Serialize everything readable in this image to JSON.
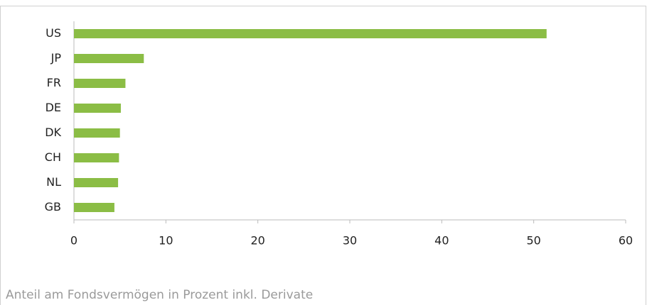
{
  "chart_data": {
    "type": "bar",
    "orientation": "horizontal",
    "categories": [
      "US",
      "JP",
      "FR",
      "DE",
      "DK",
      "CH",
      "NL",
      "GB"
    ],
    "values": [
      51.4,
      7.6,
      5.6,
      5.1,
      5.0,
      4.9,
      4.8,
      4.4
    ],
    "color": "#8bbd45",
    "xlim": [
      0,
      60
    ],
    "xticks": [
      0,
      10,
      20,
      30,
      40,
      50,
      60
    ],
    "note": "Anteil am Fondsvermögen in Prozent inkl. Derivate"
  }
}
